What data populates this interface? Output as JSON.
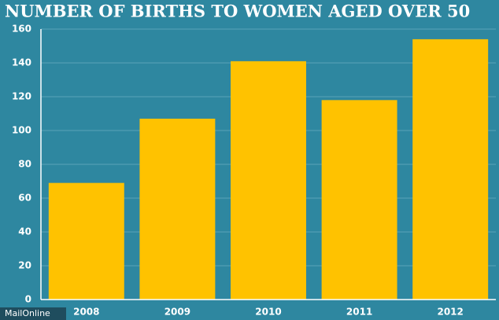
{
  "chart_data": {
    "type": "bar",
    "title": "NUMBER OF BIRTHS TO WOMEN AGED OVER 50",
    "categories": [
      "2008",
      "2009",
      "2010",
      "2011",
      "2012"
    ],
    "values": [
      69,
      107,
      141,
      118,
      154
    ],
    "color": "#ffc200",
    "ylim": [
      0,
      160
    ],
    "yticks": [
      0,
      20,
      40,
      60,
      80,
      100,
      120,
      140,
      160
    ],
    "grid": true,
    "watermark": "MailOnline"
  }
}
